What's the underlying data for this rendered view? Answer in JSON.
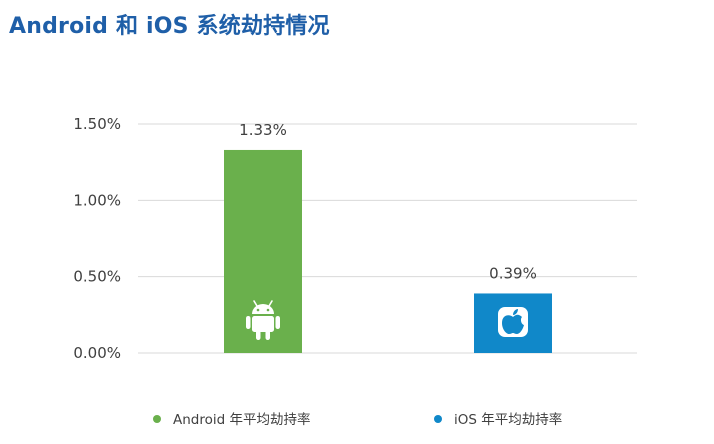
{
  "title": "Android 和 iOS 系统劫持情况",
  "chart_data": {
    "type": "bar",
    "categories": [
      "Android 年平均劫持率",
      "iOS 年平均劫持率"
    ],
    "values": [
      1.33,
      0.39
    ],
    "value_labels": [
      "1.33%",
      "0.39%"
    ],
    "colors": [
      "#6ab04c",
      "#1088c9"
    ],
    "icons": [
      "android-logo-icon",
      "apple-logo-icon"
    ],
    "ylim": [
      0,
      1.5
    ],
    "yticks": [
      0,
      0.5,
      1.0,
      1.5
    ],
    "ytick_labels": [
      "0.00%",
      "0.50%",
      "1.00%",
      "1.50%"
    ],
    "grid": true,
    "legend": {
      "placement": "bottom",
      "entries": [
        {
          "label": "Android 年平均劫持率",
          "color": "#6ab04c"
        },
        {
          "label": "iOS 年平均劫持率",
          "color": "#1088c9"
        }
      ]
    },
    "gridline_color": "#d9d9d9",
    "title_color": "#1f5fa8"
  }
}
